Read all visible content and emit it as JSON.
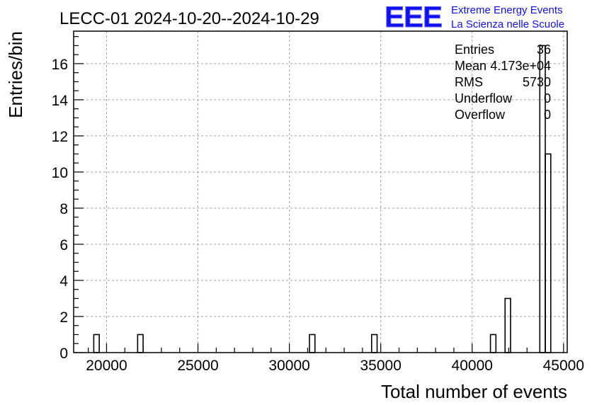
{
  "header": {
    "title": "LECC-01 2024-10-20--2024-10-29",
    "logo_text": "EEE",
    "logo_line1": "Extreme Energy Events",
    "logo_line2": "La Scienza nelle Scuole",
    "logo_color": "#1010ee"
  },
  "stats": [
    {
      "label": "Entries",
      "value": "36"
    },
    {
      "label": "Mean",
      "value": "4.173e+04"
    },
    {
      "label": "RMS",
      "value": "5730"
    },
    {
      "label": "Underflow",
      "value": "0"
    },
    {
      "label": "Overflow",
      "value": "0"
    }
  ],
  "chart_data": {
    "type": "bar",
    "histogram": true,
    "xlabel": "Total number of events",
    "ylabel": "Entries/bin",
    "xlim": [
      18200,
      45200
    ],
    "ylim": [
      0,
      17.8
    ],
    "grid": true,
    "x_ticks": [
      20000,
      25000,
      30000,
      35000,
      40000,
      45000
    ],
    "x_tick_labels": [
      "20000",
      "25000",
      "30000",
      "35000",
      "40000",
      "45000"
    ],
    "y_ticks": [
      0,
      2,
      4,
      6,
      8,
      10,
      12,
      14,
      16
    ],
    "y_tick_labels": [
      "0",
      "2",
      "4",
      "6",
      "8",
      "10",
      "12",
      "14",
      "16"
    ],
    "bins": [
      {
        "x0": 19300,
        "x1": 19600,
        "count": 1
      },
      {
        "x0": 21700,
        "x1": 22000,
        "count": 1
      },
      {
        "x0": 31100,
        "x1": 31400,
        "count": 1
      },
      {
        "x0": 34500,
        "x1": 34800,
        "count": 1
      },
      {
        "x0": 41000,
        "x1": 41300,
        "count": 1
      },
      {
        "x0": 41800,
        "x1": 42100,
        "count": 3
      },
      {
        "x0": 43700,
        "x1": 44000,
        "count": 17
      },
      {
        "x0": 44000,
        "x1": 44300,
        "count": 11
      }
    ]
  }
}
